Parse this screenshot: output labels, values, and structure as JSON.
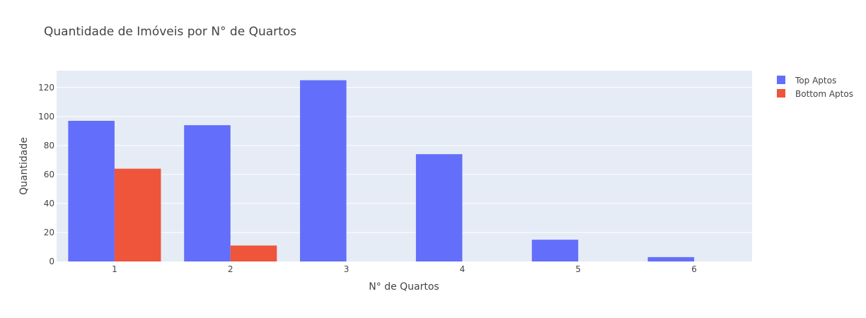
{
  "chart_data": {
    "type": "bar",
    "title": "Quantidade de Imóveis por N° de Quartos",
    "xlabel": "N° de Quartos",
    "ylabel": "Quantidade",
    "categories": [
      "1",
      "2",
      "3",
      "4",
      "5",
      "6"
    ],
    "series": [
      {
        "name": "Top Aptos",
        "color": "#636efa",
        "values": [
          97,
          94,
          125,
          74,
          15,
          3
        ]
      },
      {
        "name": "Bottom Aptos",
        "color": "#ef553b",
        "values": [
          64,
          11,
          null,
          null,
          null,
          null
        ]
      }
    ],
    "ylim": [
      0,
      131.6
    ],
    "yticks": [
      0,
      20,
      40,
      60,
      80,
      100,
      120
    ],
    "grid": true,
    "legend": "top-right",
    "background": "#e5ecf6"
  }
}
